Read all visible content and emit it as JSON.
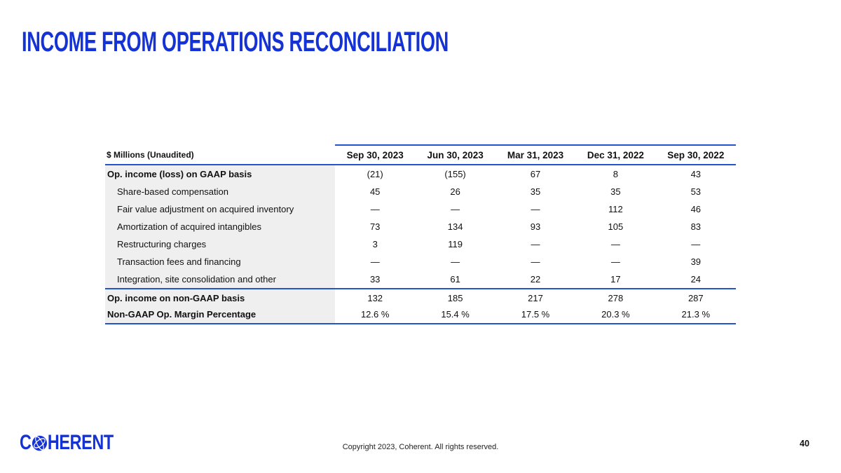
{
  "title": "INCOME FROM OPERATIONS RECONCILIATION",
  "table": {
    "corner_label": "$ Millions (Unaudited)",
    "columns": [
      "Sep 30, 2023",
      "Jun 30, 2023",
      "Mar 31, 2023",
      "Dec 31, 2022",
      "Sep 30, 2022"
    ],
    "rows": [
      {
        "label": "Op. income (loss) on GAAP basis",
        "values": [
          "(21)",
          "(155)",
          "67",
          "8",
          "43"
        ],
        "emphasis": true,
        "indent": false,
        "rule_above": false
      },
      {
        "label": "Share-based compensation",
        "values": [
          "45",
          "26",
          "35",
          "35",
          "53"
        ],
        "emphasis": false,
        "indent": true,
        "rule_above": false
      },
      {
        "label": "Fair value adjustment on acquired inventory",
        "values": [
          "—",
          "—",
          "—",
          "112",
          "46"
        ],
        "emphasis": false,
        "indent": true,
        "rule_above": false
      },
      {
        "label": "Amortization of acquired intangibles",
        "values": [
          "73",
          "134",
          "93",
          "105",
          "83"
        ],
        "emphasis": false,
        "indent": true,
        "rule_above": false
      },
      {
        "label": "Restructuring charges",
        "values": [
          "3",
          "119",
          "—",
          "—",
          "—"
        ],
        "emphasis": false,
        "indent": true,
        "rule_above": false
      },
      {
        "label": "Transaction fees and financing",
        "values": [
          "—",
          "—",
          "—",
          "—",
          "39"
        ],
        "emphasis": false,
        "indent": true,
        "rule_above": false
      },
      {
        "label": "Integration, site consolidation and other",
        "values": [
          "33",
          "61",
          "22",
          "17",
          "24"
        ],
        "emphasis": false,
        "indent": true,
        "rule_above": false
      },
      {
        "label": "Op. income on non-GAAP basis",
        "values": [
          "132",
          "185",
          "217",
          "278",
          "287"
        ],
        "emphasis": true,
        "indent": false,
        "rule_above": true
      },
      {
        "label": "Non-GAAP Op. Margin Percentage",
        "values": [
          "12.6 %",
          "15.4 %",
          "17.5 %",
          "20.3 %",
          "21.3 %"
        ],
        "emphasis": true,
        "indent": false,
        "rule_above": false
      }
    ]
  },
  "footer": {
    "logo_text_left": "C",
    "logo_text_right": "HERENT",
    "copyright": "Copyright 2023, Coherent. All rights reserved.",
    "page_number": "40"
  },
  "colors": {
    "accent_blue": "#1533d4",
    "rule_blue": "#2255cb",
    "label_bg": "#efefef",
    "text": "#111111"
  }
}
